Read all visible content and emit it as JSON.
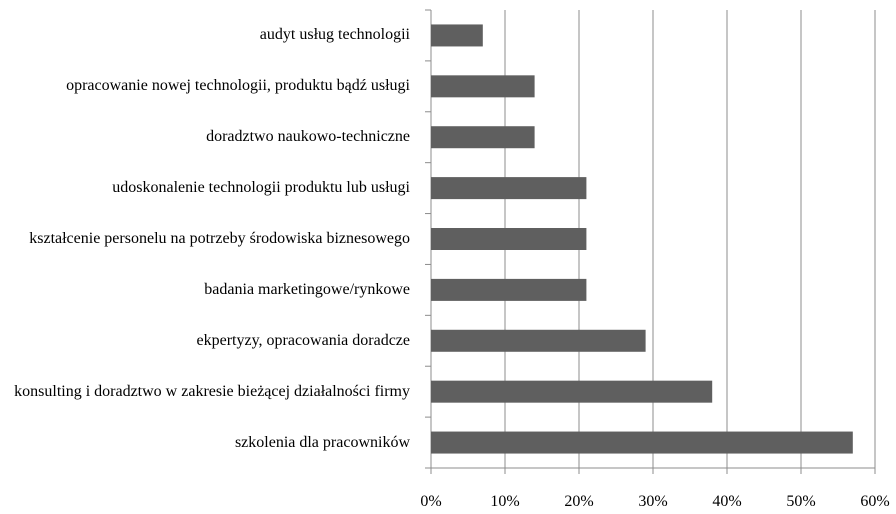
{
  "chart_data": {
    "type": "bar",
    "orientation": "horizontal",
    "categories": [
      "audyt usług technologii",
      "opracowanie nowej technologii, produktu bądź usługi",
      "doradztwo naukowo-techniczne",
      "udoskonalenie technologii produktu lub usługi",
      "kształcenie personelu na potrzeby środowiska biznesowego",
      "badania marketingowe/rynkowe",
      "ekpertyzy, opracowania doradcze",
      "konsulting i doradztwo w zakresie bieżącej działalności firmy",
      "szkolenia dla pracowników"
    ],
    "values": [
      7,
      14,
      14,
      21,
      21,
      21,
      29,
      38,
      57
    ],
    "color": "#5f5f5f",
    "xlim": [
      0,
      60
    ],
    "xticks": [
      {
        "value": 0,
        "label": "0%"
      },
      {
        "value": 10,
        "label": "10%"
      },
      {
        "value": 20,
        "label": "20%"
      },
      {
        "value": 30,
        "label": "30%"
      },
      {
        "value": 40,
        "label": "40%"
      },
      {
        "value": 50,
        "label": "50%"
      },
      {
        "value": 60,
        "label": "60%"
      }
    ],
    "grid": true
  }
}
